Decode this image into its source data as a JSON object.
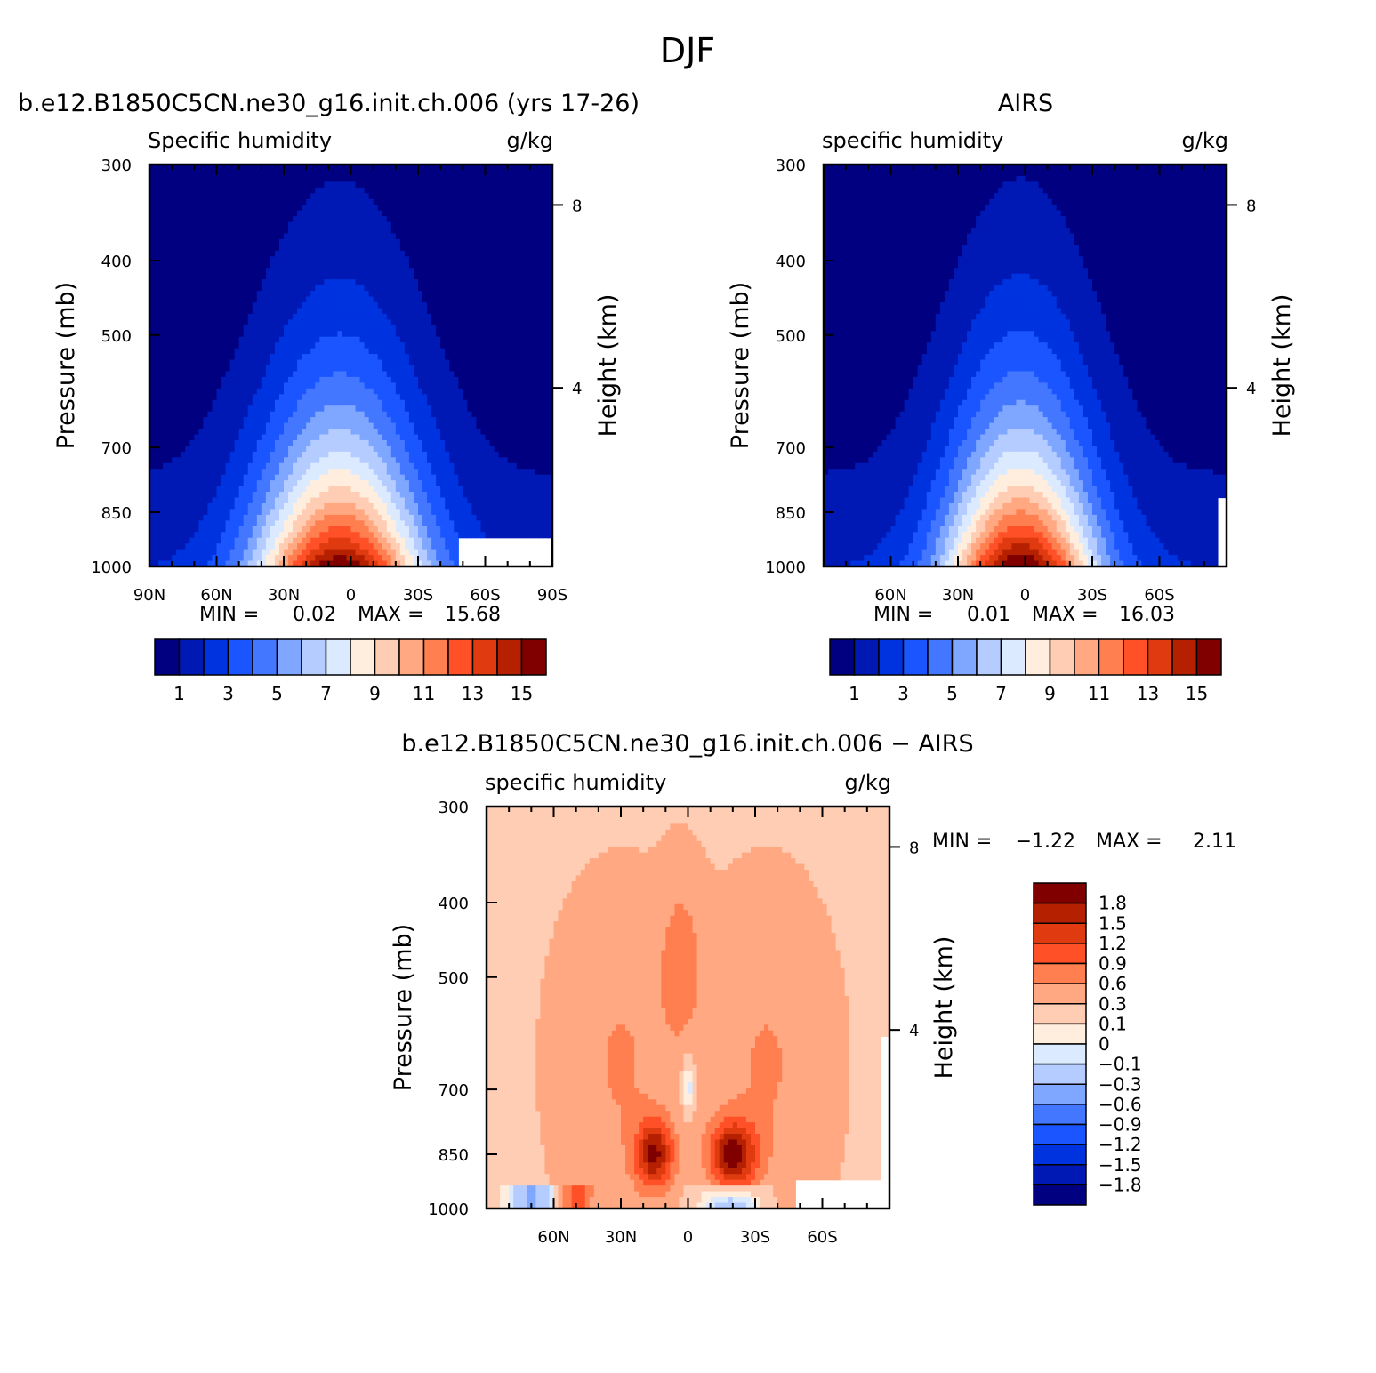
{
  "figure": {
    "title": "DJF"
  },
  "panels": [
    {
      "id": "model",
      "title": "b.e12.B1850C5CN.ne30_g16.init.ch.006 (yrs 17-26)",
      "left_label": "Specific humidity",
      "right_label": "g/kg",
      "stats": {
        "min_label": "MIN =",
        "min": "0.02",
        "max_label": "MAX =",
        "max": "15.68"
      }
    },
    {
      "id": "obs",
      "title": "AIRS",
      "left_label": "specific humidity",
      "right_label": "g/kg",
      "stats": {
        "min_label": "MIN =",
        "min": "0.01",
        "max_label": "MAX =",
        "max": "16.03"
      }
    },
    {
      "id": "diff",
      "title": "b.e12.B1850C5CN.ne30_g16.init.ch.006 − AIRS",
      "left_label": "specific humidity",
      "right_label": "g/kg",
      "stats": {
        "min_label": "MIN =",
        "min": "−1.22",
        "max_label": "MAX =",
        "max": "2.11"
      }
    }
  ],
  "chart_data": [
    {
      "type": "heatmap",
      "title": "b.e12.B1850C5CN.ne30_g16.init.ch.006 (yrs 17-26)",
      "variable": "Specific humidity",
      "units": "g/kg",
      "xlabel": "",
      "ylabel": "Pressure (mb)",
      "y2label": "Height (km)",
      "x_ticks": [
        "90N",
        "60N",
        "30N",
        "0",
        "30S",
        "60S",
        "90S"
      ],
      "x_values": [
        90,
        60,
        30,
        0,
        -30,
        -60,
        -90
      ],
      "xlim": [
        90,
        -90
      ],
      "y_ticks": [
        "300",
        "400",
        "500",
        "700",
        "850",
        "1000"
      ],
      "y_values": [
        300,
        400,
        500,
        700,
        850,
        1000
      ],
      "ylim": [
        1000,
        300
      ],
      "y_scale": "log",
      "y2_ticks": [
        "8",
        "4"
      ],
      "y2_values": [
        8,
        4
      ],
      "min": 0.02,
      "max": 15.68,
      "peak_latitude": 5,
      "colorbar_levels": [
        "1",
        "3",
        "5",
        "7",
        "9",
        "11",
        "13",
        "15"
      ],
      "colors": [
        "#000080",
        "#0019b4",
        "#0033e0",
        "#1a55ff",
        "#4477ff",
        "#7fa7ff",
        "#b4ccff",
        "#dceaff",
        "#ffeedd",
        "#ffcdb4",
        "#ffa882",
        "#ff7f50",
        "#ff5028",
        "#e03a10",
        "#b42000",
        "#800000"
      ]
    },
    {
      "type": "heatmap",
      "title": "AIRS",
      "variable": "specific humidity",
      "units": "g/kg",
      "xlabel": "",
      "ylabel": "Pressure (mb)",
      "y2label": "Height (km)",
      "x_ticks": [
        "60N",
        "30N",
        "0",
        "30S",
        "60S"
      ],
      "x_values": [
        60,
        30,
        0,
        -30,
        -60
      ],
      "xlim": [
        90,
        -90
      ],
      "y_ticks": [
        "300",
        "400",
        "500",
        "700",
        "850",
        "1000"
      ],
      "y_values": [
        300,
        400,
        500,
        700,
        850,
        1000
      ],
      "ylim": [
        1000,
        300
      ],
      "y_scale": "log",
      "y2_ticks": [
        "8",
        "4"
      ],
      "y2_values": [
        8,
        4
      ],
      "min": 0.01,
      "max": 16.03,
      "peak_latitude": 2,
      "colorbar_levels": [
        "1",
        "3",
        "5",
        "7",
        "9",
        "11",
        "13",
        "15"
      ],
      "colors": [
        "#000080",
        "#0019b4",
        "#0033e0",
        "#1a55ff",
        "#4477ff",
        "#7fa7ff",
        "#b4ccff",
        "#dceaff",
        "#ffeedd",
        "#ffcdb4",
        "#ffa882",
        "#ff7f50",
        "#ff5028",
        "#e03a10",
        "#b42000",
        "#800000"
      ]
    },
    {
      "type": "heatmap",
      "title": "b.e12.B1850C5CN.ne30_g16.init.ch.006 − AIRS",
      "variable": "specific humidity",
      "units": "g/kg",
      "xlabel": "",
      "ylabel": "Pressure (mb)",
      "y2label": "Height (km)",
      "x_ticks": [
        "60N",
        "30N",
        "0",
        "30S",
        "60S"
      ],
      "x_values": [
        60,
        30,
        0,
        -30,
        -60
      ],
      "xlim": [
        90,
        -90
      ],
      "y_ticks": [
        "300",
        "400",
        "500",
        "700",
        "850",
        "1000"
      ],
      "y_values": [
        300,
        400,
        500,
        700,
        850,
        1000
      ],
      "ylim": [
        1000,
        300
      ],
      "y_scale": "log",
      "y2_ticks": [
        "8",
        "4"
      ],
      "y2_values": [
        8,
        4
      ],
      "min": -1.22,
      "max": 2.11,
      "maxima": [
        {
          "lat": 15,
          "p": 850
        },
        {
          "lat": -20,
          "p": 850
        }
      ],
      "colorbar_levels": [
        "1.8",
        "1.5",
        "1.2",
        "0.9",
        "0.6",
        "0.3",
        "0.1",
        "0",
        "−0.1",
        "−0.3",
        "−0.6",
        "−0.9",
        "−1.2",
        "−1.5",
        "−1.8"
      ],
      "colors": [
        "#800000",
        "#b42000",
        "#e03a10",
        "#ff5028",
        "#ff7f50",
        "#ffa882",
        "#ffcdb4",
        "#ffeedd",
        "#dceaff",
        "#b4ccff",
        "#7fa7ff",
        "#4477ff",
        "#1a55ff",
        "#0033e0",
        "#0019b4",
        "#000080"
      ]
    }
  ]
}
